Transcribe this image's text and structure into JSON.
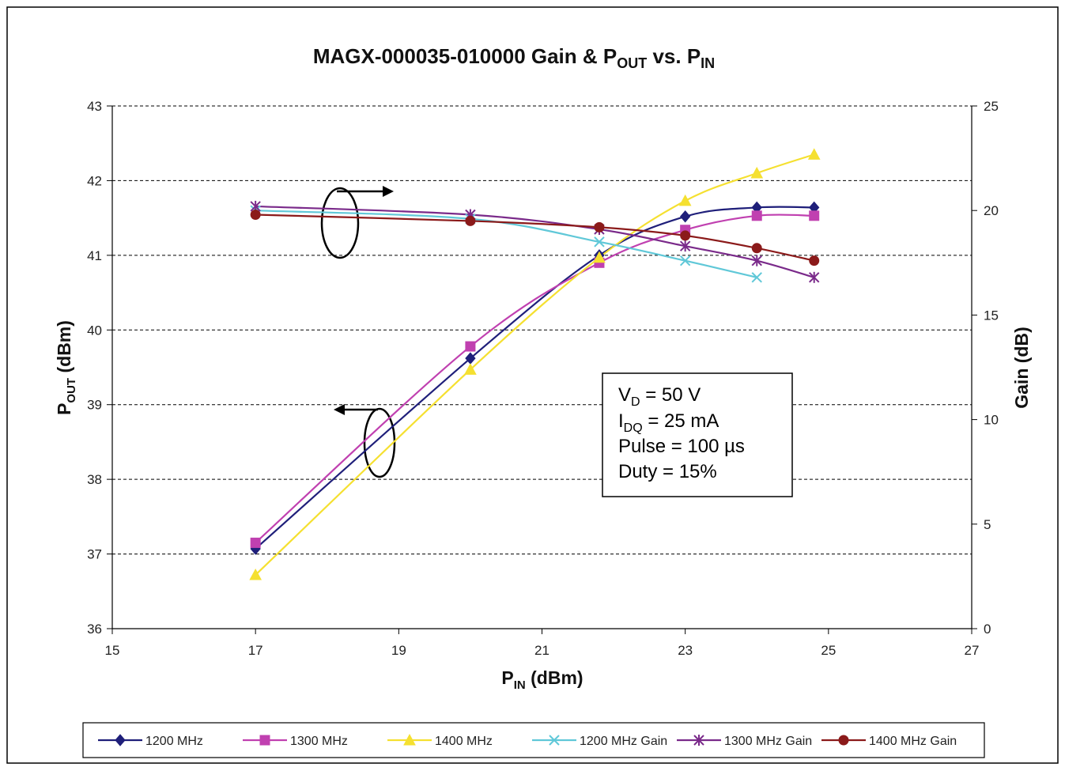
{
  "chart_data": {
    "type": "line",
    "title": {
      "main": "MAGX-000035-010000 Gain & P",
      "sub1": "OUT",
      "mid": " vs. P",
      "sub2": "IN"
    },
    "xlabel": {
      "main": "P",
      "sub": "IN",
      "rest": " (dBm)"
    },
    "ylabel_left": {
      "main": "P",
      "sub": "OUT",
      "rest": " (dBm)"
    },
    "ylabel_right": "Gain (dB)",
    "xlim": [
      15,
      27
    ],
    "ylim_left": [
      36,
      43
    ],
    "ylim_right": [
      0,
      25
    ],
    "x_ticks": [
      "15",
      "17",
      "19",
      "21",
      "23",
      "25",
      "27"
    ],
    "y_left_ticks": [
      "36",
      "37",
      "38",
      "39",
      "40",
      "41",
      "42",
      "43"
    ],
    "y_right_ticks": [
      "0",
      "5",
      "10",
      "15",
      "20",
      "25"
    ],
    "grid": "horizontal dashed",
    "legend_position": "bottom",
    "series": [
      {
        "name": "1200 MHz",
        "axis": "left",
        "color": "#1f1f7a",
        "marker": "diamond",
        "x": [
          17,
          20,
          21.8,
          23,
          24,
          24.8
        ],
        "y": [
          37.07,
          39.62,
          41.0,
          41.52,
          41.64,
          41.64
        ]
      },
      {
        "name": "1300 MHz",
        "axis": "left",
        "color": "#c040b0",
        "marker": "square",
        "x": [
          17,
          20,
          21.8,
          23,
          24,
          24.8
        ],
        "y": [
          37.15,
          39.78,
          40.9,
          41.34,
          41.53,
          41.53
        ]
      },
      {
        "name": "1400 MHz",
        "axis": "left",
        "color": "#f5e030",
        "marker": "triangle",
        "x": [
          17,
          20,
          21.8,
          23,
          24,
          24.8
        ],
        "y": [
          36.72,
          39.47,
          40.97,
          41.73,
          42.1,
          42.35
        ]
      },
      {
        "name": "1200 MHz Gain",
        "axis": "right",
        "color": "#60c8d8",
        "marker": "x",
        "x": [
          17,
          20,
          21.8,
          23,
          24
        ],
        "y": [
          20.0,
          19.6,
          18.5,
          17.6,
          16.8
        ]
      },
      {
        "name": "1300 MHz Gain",
        "axis": "right",
        "color": "#7a2a8a",
        "marker": "star",
        "x": [
          17,
          20,
          21.8,
          23,
          24,
          24.8
        ],
        "y": [
          20.2,
          19.8,
          19.1,
          18.3,
          17.6,
          16.8
        ]
      },
      {
        "name": "1400 MHz Gain",
        "axis": "right",
        "color": "#8b1a1a",
        "marker": "circle",
        "x": [
          17,
          20,
          21.8,
          23,
          24,
          24.8
        ],
        "y": [
          19.8,
          19.5,
          19.2,
          18.8,
          18.2,
          17.6
        ]
      }
    ],
    "annotation": {
      "lines": [
        {
          "pre": "V",
          "sub": "D",
          "post": " = 50 V"
        },
        {
          "pre": "I",
          "sub": "DQ",
          "post": " = 25 mA"
        },
        {
          "pre": "Pulse = 100 µs",
          "sub": "",
          "post": ""
        },
        {
          "pre": "Duty = 15%",
          "sub": "",
          "post": ""
        }
      ]
    }
  }
}
